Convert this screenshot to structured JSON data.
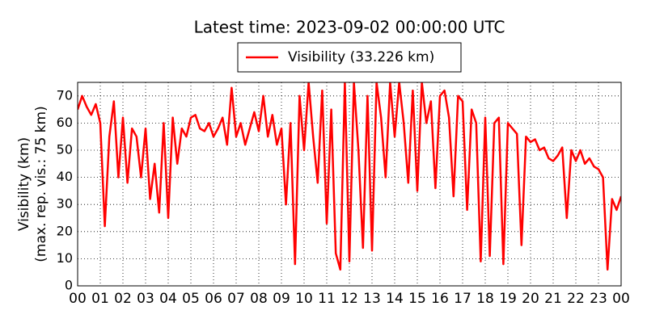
{
  "chart_data": {
    "type": "line",
    "title": "Latest time: 2023-09-02 00:00:00 UTC",
    "ylabel": [
      "Visibility (km)",
      "(max. rep. vis.: 75 km)"
    ],
    "x": [
      0.0,
      0.2,
      0.4,
      0.6,
      0.8,
      1.0,
      1.2,
      1.4,
      1.6,
      1.8,
      2.0,
      2.2,
      2.4,
      2.6,
      2.8,
      3.0,
      3.2,
      3.4,
      3.6,
      3.8,
      4.0,
      4.2,
      4.4,
      4.6,
      4.8,
      5.0,
      5.2,
      5.4,
      5.6,
      5.8,
      6.0,
      6.2,
      6.4,
      6.6,
      6.8,
      7.0,
      7.2,
      7.4,
      7.6,
      7.8,
      8.0,
      8.2,
      8.4,
      8.6,
      8.8,
      9.0,
      9.2,
      9.4,
      9.6,
      9.8,
      10.0,
      10.2,
      10.4,
      10.6,
      10.8,
      11.0,
      11.2,
      11.4,
      11.6,
      11.8,
      12.0,
      12.2,
      12.4,
      12.6,
      12.8,
      13.0,
      13.2,
      13.4,
      13.6,
      13.8,
      14.0,
      14.2,
      14.4,
      14.6,
      14.8,
      15.0,
      15.2,
      15.4,
      15.6,
      15.8,
      16.0,
      16.2,
      16.4,
      16.6,
      16.8,
      17.0,
      17.2,
      17.4,
      17.6,
      17.8,
      18.0,
      18.2,
      18.4,
      18.6,
      18.8,
      19.0,
      19.2,
      19.4,
      19.6,
      19.8,
      20.0,
      20.2,
      20.4,
      20.6,
      20.8,
      21.0,
      21.2,
      21.4,
      21.6,
      21.8,
      22.0,
      22.2,
      22.4,
      22.6,
      22.8,
      23.0,
      23.2,
      23.4,
      23.6,
      23.8,
      24.0
    ],
    "series": [
      {
        "name": "Visibility (33.226 km)",
        "color": "#ff0000",
        "values": [
          65,
          70,
          66,
          63,
          67,
          60,
          22,
          55,
          68,
          40,
          62,
          38,
          58,
          55,
          40,
          58,
          32,
          45,
          27,
          60,
          25,
          62,
          45,
          58,
          55,
          62,
          63,
          58,
          57,
          60,
          55,
          58,
          62,
          52,
          73,
          55,
          60,
          52,
          58,
          64,
          57,
          70,
          55,
          63,
          52,
          58,
          30,
          60,
          8,
          70,
          50,
          75,
          55,
          38,
          72,
          23,
          65,
          12,
          6,
          75,
          9,
          75,
          50,
          14,
          70,
          13,
          75,
          62,
          40,
          75,
          55,
          75,
          60,
          38,
          72,
          35,
          75,
          60,
          68,
          36,
          70,
          72,
          62,
          33,
          70,
          68,
          28,
          65,
          60,
          9,
          62,
          11,
          60,
          62,
          8,
          60,
          58,
          56,
          15,
          55,
          53,
          54,
          50,
          51,
          47,
          46,
          48,
          51,
          25,
          50,
          46,
          50,
          45,
          47,
          44,
          43,
          40,
          6,
          32,
          28,
          33
        ]
      }
    ],
    "xlim": [
      0,
      24
    ],
    "xticks": [
      {
        "value": 0,
        "label": "00"
      },
      {
        "value": 1,
        "label": "01"
      },
      {
        "value": 2,
        "label": "02"
      },
      {
        "value": 3,
        "label": "03"
      },
      {
        "value": 4,
        "label": "04"
      },
      {
        "value": 5,
        "label": "05"
      },
      {
        "value": 6,
        "label": "06"
      },
      {
        "value": 7,
        "label": "07"
      },
      {
        "value": 8,
        "label": "08"
      },
      {
        "value": 9,
        "label": "09"
      },
      {
        "value": 10,
        "label": "10"
      },
      {
        "value": 11,
        "label": "11"
      },
      {
        "value": 12,
        "label": "12"
      },
      {
        "value": 13,
        "label": "13"
      },
      {
        "value": 14,
        "label": "14"
      },
      {
        "value": 15,
        "label": "15"
      },
      {
        "value": 16,
        "label": "16"
      },
      {
        "value": 17,
        "label": "17"
      },
      {
        "value": 18,
        "label": "18"
      },
      {
        "value": 19,
        "label": "19"
      },
      {
        "value": 20,
        "label": "20"
      },
      {
        "value": 21,
        "label": "21"
      },
      {
        "value": 22,
        "label": "22"
      },
      {
        "value": 23,
        "label": "23"
      },
      {
        "value": 24,
        "label": "00"
      }
    ],
    "ylim": [
      0,
      75
    ],
    "yticks": [
      0,
      10,
      20,
      30,
      40,
      50,
      60,
      70
    ],
    "grid": true,
    "legend": "top"
  }
}
